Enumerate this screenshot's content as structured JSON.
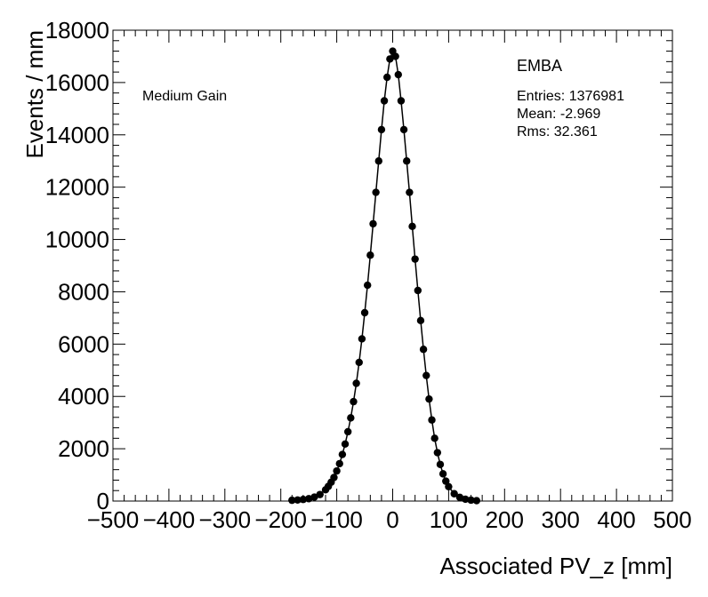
{
  "chart_data": {
    "type": "scatter",
    "xlabel": "Associated PV_z [mm]",
    "ylabel": "Events / mm",
    "xlim": [
      -500,
      500
    ],
    "ylim": [
      0,
      18000
    ],
    "xticks": [
      -500,
      -400,
      -300,
      -200,
      -100,
      0,
      100,
      200,
      300,
      400,
      500
    ],
    "yticks": [
      0,
      2000,
      4000,
      6000,
      8000,
      10000,
      12000,
      14000,
      16000,
      18000
    ],
    "xtick_labels": [
      "−500",
      "−400",
      "−300",
      "−200",
      "−100",
      "0",
      "100",
      "200",
      "300",
      "400",
      "500"
    ],
    "ytick_labels": [
      "0",
      "2000",
      "4000",
      "6000",
      "8000",
      "10000",
      "12000",
      "14000",
      "16000",
      "18000"
    ],
    "annotation": "Medium Gain",
    "stats": {
      "title": "EMBA",
      "entries": "Entries: 1376981",
      "mean": "Mean: -2.969",
      "rms": "Rms: 32.361"
    },
    "series": [
      {
        "x": [
          -180,
          -170,
          -160,
          -150,
          -140,
          -130,
          -120,
          -115,
          -110,
          -105,
          -100,
          -95,
          -90,
          -85,
          -80,
          -75,
          -70,
          -65,
          -60,
          -55,
          -50,
          -45,
          -40,
          -35,
          -30,
          -25,
          -20,
          -15,
          -10,
          -5,
          0,
          5,
          10,
          15,
          20,
          25,
          30,
          35,
          40,
          45,
          50,
          55,
          60,
          65,
          70,
          75,
          80,
          85,
          90,
          95,
          100,
          110,
          120,
          130,
          140,
          150
        ],
        "y": [
          30,
          40,
          60,
          90,
          150,
          250,
          430,
          560,
          720,
          900,
          1150,
          1430,
          1780,
          2180,
          2650,
          3180,
          3800,
          4500,
          5300,
          6200,
          7200,
          8250,
          9400,
          10600,
          11800,
          13000,
          14200,
          15300,
          16200,
          16900,
          17200,
          17000,
          16300,
          15300,
          14200,
          13000,
          11800,
          10500,
          9250,
          8050,
          6900,
          5800,
          4800,
          3900,
          3100,
          2400,
          1850,
          1400,
          1040,
          760,
          550,
          280,
          140,
          70,
          35,
          15
        ]
      }
    ]
  }
}
